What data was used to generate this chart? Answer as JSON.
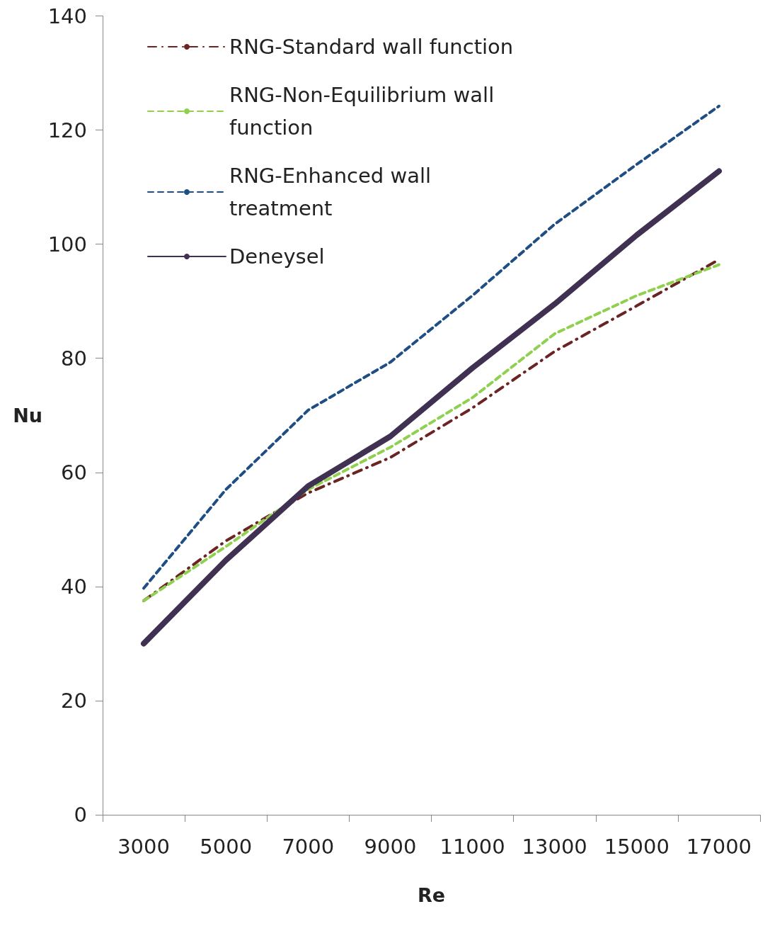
{
  "chart_data": {
    "type": "line",
    "xlabel": "Re",
    "ylabel": "Nu",
    "categories": [
      "3000",
      "5000",
      "7000",
      "9000",
      "11000",
      "13000",
      "15000",
      "17000"
    ],
    "series": [
      {
        "name": "RNG-Standard wall function",
        "color": "#6b2424",
        "line_style": "dashdot",
        "values": [
          37.5,
          48,
          56.4,
          62.6,
          71.3,
          81.2,
          89.2,
          97.3
        ]
      },
      {
        "name": "RNG-Non-Equilibrium wall function",
        "color": "#8fd14f",
        "line_style": "dashed",
        "values": [
          37.5,
          47,
          57,
          64.4,
          73.1,
          84.3,
          91,
          96.4
        ]
      },
      {
        "name": "RNG-Enhanced wall treatment",
        "color": "#1f4e84",
        "line_style": "dashed",
        "values": [
          39.7,
          57,
          70.9,
          79.3,
          91,
          103.5,
          114,
          124.2
        ]
      },
      {
        "name": "Deneysel",
        "color": "#403152",
        "line_style": "solid",
        "values": [
          30,
          44.6,
          57.6,
          66.3,
          78.3,
          89.5,
          101.6,
          112.8
        ]
      }
    ],
    "ylim": [
      0,
      140
    ],
    "yticks": [
      0,
      20,
      40,
      60,
      80,
      100,
      120,
      140
    ],
    "grid": false,
    "legend": "top left",
    "marker": "none"
  }
}
